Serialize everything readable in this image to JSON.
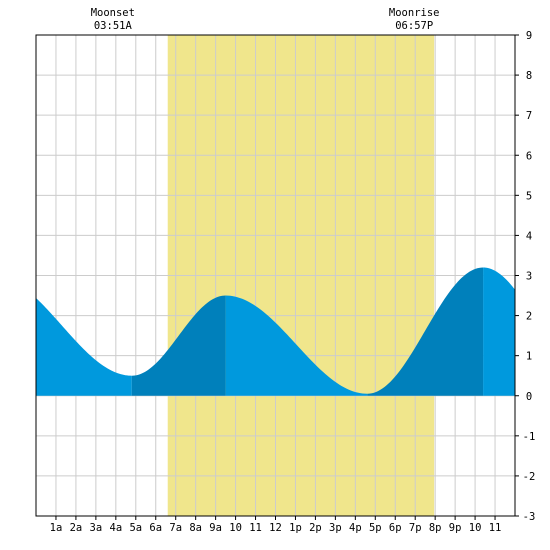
{
  "chart_data": {
    "type": "area",
    "title": "",
    "xlabel": "",
    "ylabel": "",
    "xlim": [
      0,
      24
    ],
    "ylim": [
      -3,
      9
    ],
    "y_ticks": [
      -3,
      -2,
      -1,
      0,
      1,
      2,
      3,
      4,
      5,
      6,
      7,
      8,
      9
    ],
    "x_tick_labels": [
      "1a",
      "2a",
      "3a",
      "4a",
      "5a",
      "6a",
      "7a",
      "8a",
      "9a",
      "10",
      "11",
      "12",
      "1p",
      "2p",
      "3p",
      "4p",
      "5p",
      "6p",
      "7p",
      "8p",
      "9p",
      "10",
      "11"
    ],
    "grid": true,
    "daylight_band": {
      "start_hour": 6.6,
      "end_hour": 19.95,
      "color": "#f0e68c"
    },
    "moonset": {
      "label": "Moonset",
      "time": "03:51A",
      "hour": 3.85
    },
    "moonrise": {
      "label": "Moonrise",
      "time": "06:57P",
      "hour": 18.95
    },
    "tide_extremes": [
      {
        "hour": 4.8,
        "height": 0.5,
        "type": "low"
      },
      {
        "hour": 9.5,
        "height": 2.5,
        "type": "high"
      },
      {
        "hour": 16.6,
        "height": 0.05,
        "type": "low"
      },
      {
        "hour": 22.4,
        "height": 3.2,
        "type": "high"
      }
    ],
    "initial_slope_back_hour": -2.2,
    "initial_slope_back_height": 3.0,
    "colors": {
      "rising": "#0080bb",
      "falling": "#0099dd",
      "grid": "#cccccc",
      "axis": "#000000"
    }
  }
}
